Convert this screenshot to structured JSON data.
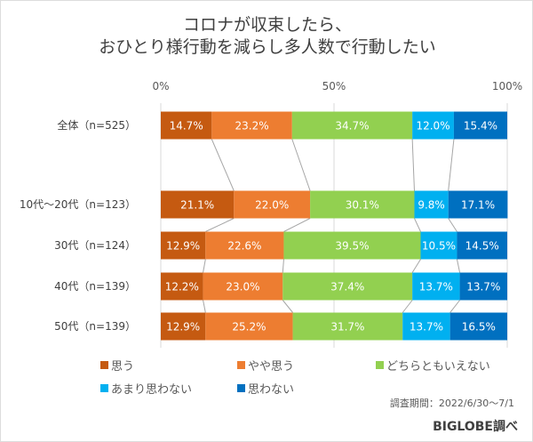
{
  "chart_data": {
    "type": "bar",
    "orientation": "horizontal-stacked-100",
    "title": [
      "コロナが収束したら、",
      "おひとり様行動を減らし多人数で行動したい"
    ],
    "categories": [
      "全体（n=525）",
      "10代～20代（n=123）",
      "30代（n=124）",
      "40代（n=139）",
      "50代（n=139）"
    ],
    "xticks": [
      "0%",
      "50%",
      "100%"
    ],
    "xlim": [
      0,
      100
    ],
    "grid": true,
    "legend_position": "bottom",
    "series": [
      {
        "name": "思う",
        "color": "#c55a11",
        "values": [
          14.7,
          21.1,
          12.9,
          12.2,
          12.9
        ]
      },
      {
        "name": "やや思う",
        "color": "#ed7d31",
        "values": [
          23.2,
          22.0,
          22.6,
          23.0,
          25.2
        ]
      },
      {
        "name": "どちらともいえない",
        "color": "#92d050",
        "values": [
          34.7,
          30.1,
          39.5,
          37.4,
          31.7
        ]
      },
      {
        "name": "あまり思わない",
        "color": "#00b0f0",
        "values": [
          12.0,
          9.8,
          10.5,
          13.7,
          13.7
        ]
      },
      {
        "name": "思わない",
        "color": "#0070c0",
        "values": [
          15.4,
          17.1,
          14.5,
          13.7,
          16.5
        ]
      }
    ]
  },
  "note": "調査期間：2022/6/30～7/1",
  "source": "BIGLOBE調べ"
}
